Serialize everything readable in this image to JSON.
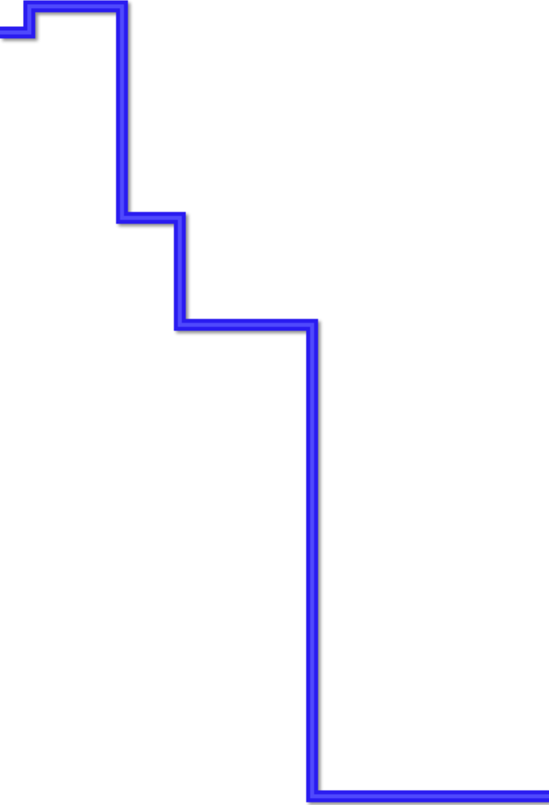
{
  "diagram": {
    "kind": "stepped-line",
    "line_color": "#2a1ef0",
    "line_highlight_color": "#5a52ff",
    "background_color": "#ffffff",
    "style": "beveled 3D stroke with drop shadow"
  }
}
